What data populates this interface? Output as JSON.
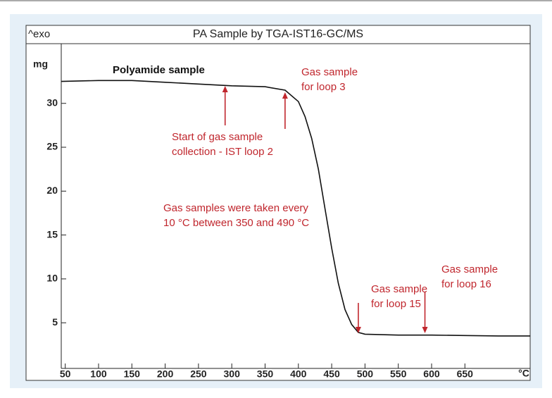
{
  "chart_data": {
    "type": "line",
    "title": "PA Sample by TGA-IST16-GC/MS",
    "corner_label": "^exo",
    "subtitle": "Polyamide sample",
    "y_label": "mg",
    "x_label": "°C",
    "xlim": [
      44,
      748
    ],
    "ylim": [
      -0.2,
      36.8
    ],
    "xticks": [
      50,
      100,
      150,
      200,
      250,
      300,
      350,
      400,
      450,
      500,
      550,
      600,
      650
    ],
    "yticks": [
      5,
      10,
      15,
      20,
      25,
      30
    ],
    "series": [
      {
        "name": "Polyamide sample",
        "color": "#111111",
        "x": [
          44,
          100,
          150,
          200,
          250,
          300,
          350,
          380,
          400,
          410,
          420,
          430,
          440,
          450,
          460,
          470,
          480,
          490,
          500,
          550,
          600,
          650,
          700,
          748
        ],
        "values": [
          32.5,
          32.6,
          32.6,
          32.4,
          32.2,
          32.0,
          31.9,
          31.5,
          30.2,
          28.5,
          26.0,
          22.5,
          18.0,
          13.5,
          9.5,
          6.5,
          4.8,
          3.9,
          3.7,
          3.6,
          3.6,
          3.55,
          3.5,
          3.5
        ]
      }
    ],
    "annotation_color": "#c0262d",
    "annotations": [
      {
        "lines": [
          "Start of gas sample",
          "collection - IST loop 2"
        ],
        "x": 290
      },
      {
        "lines": [
          "Gas sample",
          "for loop 3"
        ],
        "x": 380
      },
      {
        "lines": [
          "Gas samples were taken every",
          "10 °C between 350 and 490 °C"
        ]
      },
      {
        "lines": [
          "Gas sample",
          "for loop 15"
        ],
        "x": 490
      },
      {
        "lines": [
          "Gas sample",
          "for loop 16"
        ],
        "x": 590
      }
    ]
  }
}
